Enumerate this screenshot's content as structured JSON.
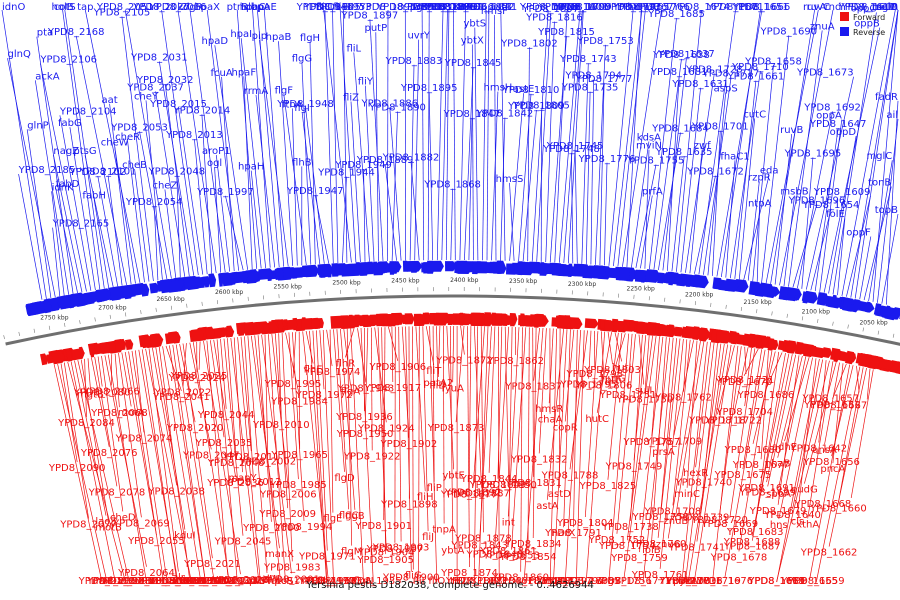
{
  "caption": "Yersinia pestis D182038, complete genome. - 0..4626944",
  "legend": {
    "forward": {
      "label": "Forward",
      "color": "#ee1111"
    },
    "reverse": {
      "label": "Reverse",
      "color": "#1a1aee"
    }
  },
  "ruler_labels": [
    "2750 kbp",
    "2700 kbp",
    "2650 kbp",
    "2600 kbp",
    "2550 kbp",
    "2500 kbp",
    "2450 kbp",
    "2400 kbp",
    "2350 kbp",
    "2300 kbp",
    "2250 kbp",
    "2200 kbp",
    "2150 kbp",
    "2100 kbp",
    "2050 kbp"
  ],
  "reverse_labels": [
    "YPD8_2185",
    "idnO",
    "glnP",
    "glnQ",
    "YPD8_2165",
    "idnK",
    "ackA",
    "pta",
    "fabD",
    "nagZ",
    "YPD8_2106",
    "YPD8_2104",
    "fabG",
    "holB",
    "cotS",
    "fabH",
    "ptsG",
    "YPD8_2102",
    "YPD8_2101",
    "YPD8_2168",
    "aat",
    "cheW",
    "tap",
    "cheR",
    "cheB",
    "YPD8_2105",
    "YPD8_2054",
    "cheY",
    "YPD8_2053",
    "YPD8_2051",
    "cheZ",
    "YPD8_2048",
    "YPD8_2037",
    "YPD8_2032",
    "YPD8_2031",
    "YPD8_2027",
    "YPD8_2015",
    "YPD8_2013",
    "YPD8_2014",
    "YPD8_2016",
    "ogl",
    "kdgR",
    "aroP1",
    "fcuA",
    "hpaX",
    "YPD8_1997",
    "hpaD",
    "hpaF",
    "ptrB",
    "hpaH",
    "hpaI",
    "hpaC",
    "rrmA",
    "dbpA",
    "hpaE",
    "pip",
    "hpaB",
    "ftnA",
    "flhB",
    "flgF",
    "flgG",
    "flgH",
    "flgI",
    "YPD8_1948",
    "YPD8_1947",
    "YPD8_1946",
    "YPD8_1945",
    "YPD8_1944",
    "YPD8_1953",
    "fliC",
    "fliE",
    "fliZ",
    "YPD8_1949",
    "fliL",
    "fliY",
    "putP",
    "YPD8_1897",
    "YPD8_1891",
    "YPD8_1890",
    "YPD8_1889",
    "YPD8_1886",
    "YPD8_1885",
    "YPD8_1883",
    "uvrY",
    "YPD8_1882",
    "pgsA",
    "YPD8_1881",
    "YPD8_1895",
    "YPD8_1884",
    "YPD8_1880",
    "YPD8_1879",
    "YPD8_1868",
    "YPD8_1867",
    "YPD8_1866",
    "YPD8_1845",
    "YPD8_1847",
    "ybtX",
    "ybtS",
    "YPD8_1852",
    "YPD8_1841",
    "hmsH",
    "hmsF",
    "YPD8_1842",
    "astB",
    "astE",
    "hmsS",
    "YPD8_1810",
    "YPD8_1809",
    "YPD8_1802",
    "YPD8_1796",
    "YPD8_1807",
    "YPD8_1805",
    "YPD8_1816",
    "YPD8_1815",
    "YPD8_1814",
    "YPD8_1801",
    "YPD8_1800",
    "YPD8_1799",
    "YPD8_1748",
    "YPD8_1745",
    "YPD8_1743",
    "YPD8_1735",
    "YPD8_1794",
    "YPD8_1753",
    "YPD8_1777",
    "YPD8_1776",
    "YPD8_1793",
    "hemA",
    "YPD8_1767",
    "YPD8_1766",
    "YPD8_1765",
    "kdsA",
    "YPD8_1755",
    "prfA",
    "mviN",
    "YPD8_1685",
    "YPD8_1638",
    "YPD8_1684",
    "YPD8_1637",
    "YPD8_1681",
    "YPD8_1635",
    "YPD8_1674",
    "YPD8_1631",
    "YPD8_1728",
    "zwf",
    "YPD8_1672",
    "YPD8_1671",
    "YPD8_1717",
    "aspS",
    "YPD8_1701",
    "YPD8_1666",
    "YPD8_1651",
    "fhaC1",
    "YPD8_1710",
    "YPD8_1661",
    "cutC",
    "eda",
    "rzpR",
    "YPD8_1658",
    "ntpA",
    "YPD8_1690",
    "ruvC",
    "ruvA",
    "ruvB",
    "rnd",
    "msbB",
    "znuA",
    "YPD8_1696",
    "YPD8_1692",
    "YPD8_1695",
    "YPD8_1673",
    "YPD8_1654",
    "YPD8_1647",
    "oppA",
    "oppB",
    "oppD",
    "oppC",
    "folE",
    "YPD8_1611",
    "YPD8_1609",
    "YPD8_1608",
    "mglA",
    "oppF",
    "tonB",
    "mglC",
    "selD",
    "ail",
    "topB",
    "fadR"
  ],
  "forward_labels": [
    "maf",
    "YPD8_2109",
    "YPD8_2090",
    "YPD8_2077",
    "YPD8_2091",
    "YPD8_2087",
    "lacZ",
    "YPD8_2067",
    "motB",
    "YPD8_2084",
    "mgtB",
    "YPD8_2076",
    "YPD8_2078",
    "YPD8_2080",
    "cheD",
    "YPD8_2064",
    "YPD8_2065",
    "YPD8_2066",
    "YPD8_2068",
    "YPD8_2069",
    "motA",
    "YPD8_2055",
    "YPD8_2056",
    "YPD8_2071",
    "YPD8_2074",
    "YPD8_2063",
    "YPD8_2050",
    "YPD8_2030",
    "alr",
    "YPD8_2038",
    "kduI",
    "kduD1",
    "YPD8_2040",
    "YPD8_2041",
    "YPD8_2042",
    "YPD8_2039",
    "YPD8_2049",
    "YPD8_2020",
    "YPD8_2021",
    "YPD8_2022",
    "YPD8_2047",
    "YPD8_2023",
    "YPD8_2024",
    "YPD8_2025",
    "YPD8_2026",
    "YPD8_2034",
    "YPD8_2035",
    "YPD8_2036",
    "YPD8_2043",
    "YPD8_2044",
    "YPD8_2045",
    "YPD8_2046",
    "crcA",
    "manY",
    "purT",
    "YPD8_2011",
    "YPD8_2012",
    "pelW",
    "manX",
    "hpcR",
    "YPD8_2000",
    "YPD8_2001",
    "YPD8_2002",
    "atoS1",
    "YPD8_2006",
    "YPD8_2009",
    "YPD8_2010",
    "YPD8_1983",
    "YPD8_1984",
    "YPD8_1985",
    "YPD8_1994",
    "YPD8_1995",
    "YPD8_1965",
    "YPD8_1966",
    "flhE",
    "flhA",
    "YPD8_1970",
    "YPD8_1971",
    "YPD8_1972",
    "YPD8_1973",
    "YPD8_1974",
    "flgE",
    "flgD",
    "flgC",
    "flgB",
    "flgA",
    "flgM",
    "flgN",
    "flhR",
    "YPD8_1943",
    "YPD8_1935",
    "YPD8_1936",
    "YPD8_1950",
    "YPD8_1922",
    "YPD8_1924",
    "YPD8_1904",
    "YPD8_1905",
    "YPD8_1901",
    "YPD8_1906",
    "YPD8_1917",
    "YPD8_1907",
    "YPD8_1903",
    "YPD8_1902",
    "YPD8_1900",
    "YPD8_1898",
    "fliG",
    "fliH",
    "fliI",
    "fliJ",
    "fliT",
    "fliO",
    "fliP",
    "fliD",
    "putA2",
    "tnpA",
    "ybtE",
    "ybtA",
    "fyuA",
    "irp2",
    "YPD8_1872",
    "YPD8_1873",
    "YPD8_1874",
    "YPD8_1877",
    "YPD8_1887",
    "YPD8_1888",
    "YPD8_1878",
    "YPD8_1892",
    "YPD8_1893",
    "YPD8_1843",
    "YPD8_1844",
    "YPD8_1846",
    "YPD8_1849",
    "YPD8_1850",
    "YPD8_1848",
    "YPD8_1861",
    "YPD8_1862",
    "int",
    "YPD8_1860",
    "YPD8_1853",
    "YPD8_1854",
    "YPD8_1831",
    "YPD8_1834",
    "YPD8_1837",
    "YPD8_1833",
    "YPD8_1832",
    "chaA",
    "hmsR",
    "YPD8_1822",
    "astD",
    "astA",
    "argD",
    "narX",
    "copR",
    "YPD8_1791",
    "YPD8_1792",
    "YPD8_1797",
    "YPD8_1788",
    "YPD8_1795",
    "YPD8_1798",
    "YPD8_1804",
    "YPD8_1806",
    "YPD8_1808",
    "YPD8_1803",
    "hutC",
    "hutI",
    "hutG",
    "YPD8_1825",
    "pth",
    "argS",
    "YPD8_1751",
    "YPD8_1752",
    "sulI",
    "YPD8_1738",
    "YPD8_1749",
    "YPD8_1750",
    "YPD8_1754",
    "YPD8_1756",
    "YPD8_1757",
    "YPD8_1759",
    "lolB",
    "YPD8_1771",
    "prsA",
    "YPD8_1758",
    "YPD8_1760",
    "YPD8_1761",
    "YPD8_1762",
    "YPD8_1708",
    "YPD8_1709",
    "minC",
    "znuC",
    "znuB",
    "minD",
    "hexR",
    "pykA",
    "YPD8_1739",
    "YPD8_1740",
    "YPD8_1741",
    "YPD8_1703",
    "YPD8_1716",
    "YPD8_1718",
    "YPD8_1719",
    "YPD8_1720",
    "YPD8_1721",
    "YPD8_1722",
    "YPD8_1704",
    "YPD8_1669",
    "YPD8_1670",
    "YPD8_1675",
    "YPD8_1676",
    "YPD8_1677",
    "YPD8_1678",
    "YPD8_1680",
    "YPD8_1683",
    "YPD8_1686",
    "YPD8_1687",
    "YPD8_1688",
    "YPD8_1691",
    "YPD8_1699",
    "YPD8_1679",
    "nhaB",
    "sppA",
    "adhE",
    "hns",
    "cls",
    "YPD8_1639",
    "YPD8_1640",
    "YPD8_1642",
    "YPD8_1665",
    "xthA",
    "nudG",
    "ansA",
    "pncA",
    "YPD8_1652",
    "YPD8_1655",
    "YPD8_1656",
    "YPD8_1657",
    "YPD8_1659",
    "YPD8_1660",
    "YPD8_1662",
    "YPD8_1667",
    "YPD8_1668"
  ]
}
